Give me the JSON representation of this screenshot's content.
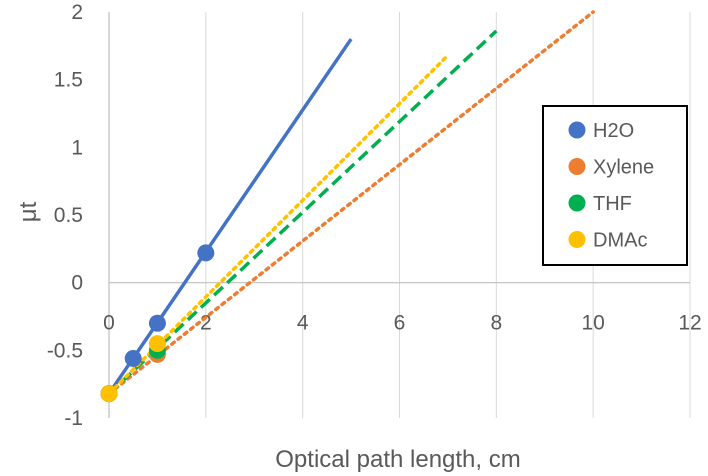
{
  "chart_data": {
    "type": "scatter",
    "title": "",
    "xlabel": "Optical path length, cm",
    "ylabel": "μt",
    "xlim": [
      0,
      12
    ],
    "ylim": [
      -1,
      2
    ],
    "x_ticks": [
      "0",
      "2",
      "4",
      "6",
      "8",
      "10",
      "12"
    ],
    "y_ticks": [
      "2",
      "1.5",
      "1",
      "0.5",
      "0",
      "-0.5",
      "-1"
    ],
    "grid": "vertical gridlines only",
    "legend_position": "right",
    "series": [
      {
        "name": "H2O",
        "color": "#4472C4",
        "line_style": "solid",
        "points": [
          [
            0,
            -0.82
          ],
          [
            0.5,
            -0.56
          ],
          [
            1,
            -0.3
          ],
          [
            2,
            0.22
          ]
        ],
        "trendline": [
          [
            0,
            -0.82
          ],
          [
            5,
            1.8
          ]
        ]
      },
      {
        "name": "Xylene",
        "color": "#ED7D31",
        "line_style": "dotted",
        "points": [
          [
            0,
            -0.82
          ],
          [
            1,
            -0.53
          ]
        ],
        "trendline": [
          [
            0,
            -0.82
          ],
          [
            10,
            2.0
          ]
        ]
      },
      {
        "name": "THF",
        "color": "#00B050",
        "line_style": "dashed",
        "points": [
          [
            0,
            -0.82
          ],
          [
            1,
            -0.5
          ]
        ],
        "trendline": [
          [
            0,
            -0.82
          ],
          [
            8,
            1.86
          ]
        ]
      },
      {
        "name": "DMAc",
        "color": "#FFC000",
        "line_style": "dotted",
        "points": [
          [
            0,
            -0.82
          ],
          [
            1,
            -0.45
          ]
        ],
        "trendline": [
          [
            0,
            -0.82
          ],
          [
            7,
            1.68
          ]
        ]
      }
    ]
  }
}
